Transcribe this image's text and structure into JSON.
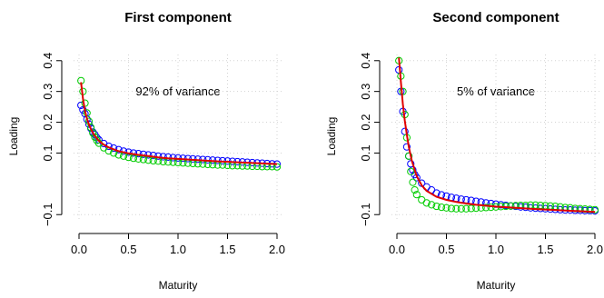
{
  "chart_data": [
    {
      "type": "scatter",
      "title": "First component",
      "xlabel": "Maturity",
      "ylabel": "Loading",
      "annotation": "92% of variance",
      "xlim": [
        0.0,
        2.0
      ],
      "ylim": [
        -0.12,
        0.42
      ],
      "x_ticks": [
        0.0,
        0.5,
        1.0,
        1.5,
        2.0
      ],
      "x_tick_labels": [
        "0.0",
        "0.5",
        "1.0",
        "1.5",
        "2.0"
      ],
      "y_ticks": [
        -0.1,
        0.1,
        0.2,
        0.3,
        0.4
      ],
      "y_tick_labels": [
        "−0.1",
        "0.1",
        "0.2",
        "0.3",
        "0.4"
      ],
      "grid": true,
      "series": [
        {
          "style": "points",
          "color": "#0000ff",
          "x": [
            0.02,
            0.04,
            0.06,
            0.08,
            0.1,
            0.12,
            0.14,
            0.16,
            0.18,
            0.2,
            0.25,
            0.3,
            0.35,
            0.4,
            0.45,
            0.5,
            0.55,
            0.6,
            0.65,
            0.7,
            0.75,
            0.8,
            0.85,
            0.9,
            0.95,
            1.0,
            1.05,
            1.1,
            1.15,
            1.2,
            1.25,
            1.3,
            1.35,
            1.4,
            1.45,
            1.5,
            1.55,
            1.6,
            1.65,
            1.7,
            1.75,
            1.8,
            1.85,
            1.9,
            1.95,
            2.0
          ],
          "y": [
            0.255,
            0.24,
            0.228,
            0.21,
            0.194,
            0.18,
            0.168,
            0.16,
            0.15,
            0.143,
            0.131,
            0.122,
            0.116,
            0.111,
            0.106,
            0.103,
            0.1,
            0.098,
            0.096,
            0.094,
            0.092,
            0.09,
            0.088,
            0.087,
            0.085,
            0.084,
            0.083,
            0.082,
            0.081,
            0.08,
            0.079,
            0.078,
            0.077,
            0.076,
            0.075,
            0.074,
            0.073,
            0.072,
            0.071,
            0.07,
            0.069,
            0.068,
            0.067,
            0.066,
            0.065,
            0.064
          ]
        },
        {
          "style": "points",
          "color": "#00cc00",
          "x": [
            0.02,
            0.04,
            0.06,
            0.08,
            0.1,
            0.12,
            0.14,
            0.16,
            0.18,
            0.2,
            0.25,
            0.3,
            0.35,
            0.4,
            0.45,
            0.5,
            0.55,
            0.6,
            0.65,
            0.7,
            0.75,
            0.8,
            0.85,
            0.9,
            0.95,
            1.0,
            1.05,
            1.1,
            1.15,
            1.2,
            1.25,
            1.3,
            1.35,
            1.4,
            1.45,
            1.5,
            1.55,
            1.6,
            1.65,
            1.7,
            1.75,
            1.8,
            1.85,
            1.9,
            1.95,
            2.0
          ],
          "y": [
            0.335,
            0.3,
            0.262,
            0.23,
            0.203,
            0.183,
            0.165,
            0.152,
            0.141,
            0.132,
            0.117,
            0.107,
            0.1,
            0.094,
            0.09,
            0.086,
            0.083,
            0.081,
            0.079,
            0.077,
            0.075,
            0.074,
            0.072,
            0.071,
            0.07,
            0.069,
            0.068,
            0.067,
            0.066,
            0.065,
            0.064,
            0.063,
            0.062,
            0.061,
            0.061,
            0.06,
            0.059,
            0.059,
            0.058,
            0.058,
            0.057,
            0.057,
            0.056,
            0.056,
            0.056,
            0.055
          ]
        },
        {
          "style": "line",
          "color": "#e00000",
          "x": [
            0.02,
            0.04,
            0.06,
            0.08,
            0.1,
            0.12,
            0.15,
            0.2,
            0.25,
            0.3,
            0.4,
            0.5,
            0.6,
            0.7,
            0.8,
            0.9,
            1.0,
            1.2,
            1.4,
            1.6,
            1.8,
            2.0
          ],
          "y": [
            0.33,
            0.275,
            0.238,
            0.212,
            0.193,
            0.178,
            0.16,
            0.14,
            0.127,
            0.118,
            0.106,
            0.099,
            0.094,
            0.09,
            0.086,
            0.083,
            0.081,
            0.077,
            0.073,
            0.07,
            0.067,
            0.064
          ]
        }
      ]
    },
    {
      "type": "scatter",
      "title": "Second component",
      "xlabel": "Maturity",
      "ylabel": "Loading",
      "annotation": "5% of variance",
      "xlim": [
        0.0,
        2.0
      ],
      "ylim": [
        -0.12,
        0.42
      ],
      "x_ticks": [
        0.0,
        0.5,
        1.0,
        1.5,
        2.0
      ],
      "x_tick_labels": [
        "0.0",
        "0.5",
        "1.0",
        "1.5",
        "2.0"
      ],
      "y_ticks": [
        -0.1,
        0.1,
        0.2,
        0.3,
        0.4
      ],
      "y_tick_labels": [
        "−0.1",
        "0.1",
        "0.2",
        "0.3",
        "0.4"
      ],
      "grid": true,
      "series": [
        {
          "style": "points",
          "color": "#0000ff",
          "x": [
            0.02,
            0.04,
            0.06,
            0.08,
            0.1,
            0.12,
            0.14,
            0.16,
            0.18,
            0.2,
            0.25,
            0.3,
            0.35,
            0.4,
            0.45,
            0.5,
            0.55,
            0.6,
            0.65,
            0.7,
            0.75,
            0.8,
            0.85,
            0.9,
            0.95,
            1.0,
            1.05,
            1.1,
            1.15,
            1.2,
            1.25,
            1.3,
            1.35,
            1.4,
            1.45,
            1.5,
            1.55,
            1.6,
            1.65,
            1.7,
            1.75,
            1.8,
            1.85,
            1.9,
            1.95,
            2.0
          ],
          "y": [
            0.37,
            0.3,
            0.235,
            0.17,
            0.12,
            0.09,
            0.065,
            0.045,
            0.03,
            0.02,
            0.002,
            -0.01,
            -0.02,
            -0.03,
            -0.036,
            -0.04,
            -0.044,
            -0.047,
            -0.05,
            -0.052,
            -0.054,
            -0.057,
            -0.059,
            -0.062,
            -0.064,
            -0.066,
            -0.068,
            -0.07,
            -0.072,
            -0.073,
            -0.075,
            -0.076,
            -0.078,
            -0.079,
            -0.08,
            -0.081,
            -0.082,
            -0.083,
            -0.084,
            -0.085,
            -0.085,
            -0.086,
            -0.086,
            -0.087,
            -0.087,
            -0.088
          ]
        },
        {
          "style": "points",
          "color": "#00cc00",
          "x": [
            0.02,
            0.04,
            0.06,
            0.08,
            0.1,
            0.12,
            0.14,
            0.16,
            0.18,
            0.2,
            0.25,
            0.3,
            0.35,
            0.4,
            0.45,
            0.5,
            0.55,
            0.6,
            0.65,
            0.7,
            0.75,
            0.8,
            0.85,
            0.9,
            0.95,
            1.0,
            1.05,
            1.1,
            1.15,
            1.2,
            1.25,
            1.3,
            1.35,
            1.4,
            1.45,
            1.5,
            1.55,
            1.6,
            1.65,
            1.7,
            1.75,
            1.8,
            1.85,
            1.9,
            1.95,
            2.0
          ],
          "y": [
            0.4,
            0.35,
            0.3,
            0.225,
            0.15,
            0.09,
            0.04,
            0.005,
            -0.02,
            -0.035,
            -0.052,
            -0.062,
            -0.068,
            -0.073,
            -0.076,
            -0.078,
            -0.08,
            -0.081,
            -0.081,
            -0.081,
            -0.08,
            -0.079,
            -0.078,
            -0.077,
            -0.076,
            -0.075,
            -0.074,
            -0.073,
            -0.072,
            -0.071,
            -0.07,
            -0.07,
            -0.069,
            -0.069,
            -0.07,
            -0.071,
            -0.072,
            -0.073,
            -0.075,
            -0.077,
            -0.078,
            -0.08,
            -0.081,
            -0.082,
            -0.083,
            -0.084
          ]
        },
        {
          "style": "line",
          "color": "#e00000",
          "x": [
            0.02,
            0.04,
            0.06,
            0.08,
            0.1,
            0.12,
            0.15,
            0.2,
            0.25,
            0.3,
            0.4,
            0.5,
            0.6,
            0.7,
            0.8,
            0.9,
            1.0,
            1.2,
            1.4,
            1.6,
            1.8,
            2.0
          ],
          "y": [
            0.41,
            0.33,
            0.26,
            0.205,
            0.16,
            0.12,
            0.075,
            0.025,
            -0.005,
            -0.023,
            -0.042,
            -0.052,
            -0.059,
            -0.064,
            -0.068,
            -0.071,
            -0.074,
            -0.078,
            -0.082,
            -0.085,
            -0.088,
            -0.091
          ]
        }
      ]
    }
  ]
}
